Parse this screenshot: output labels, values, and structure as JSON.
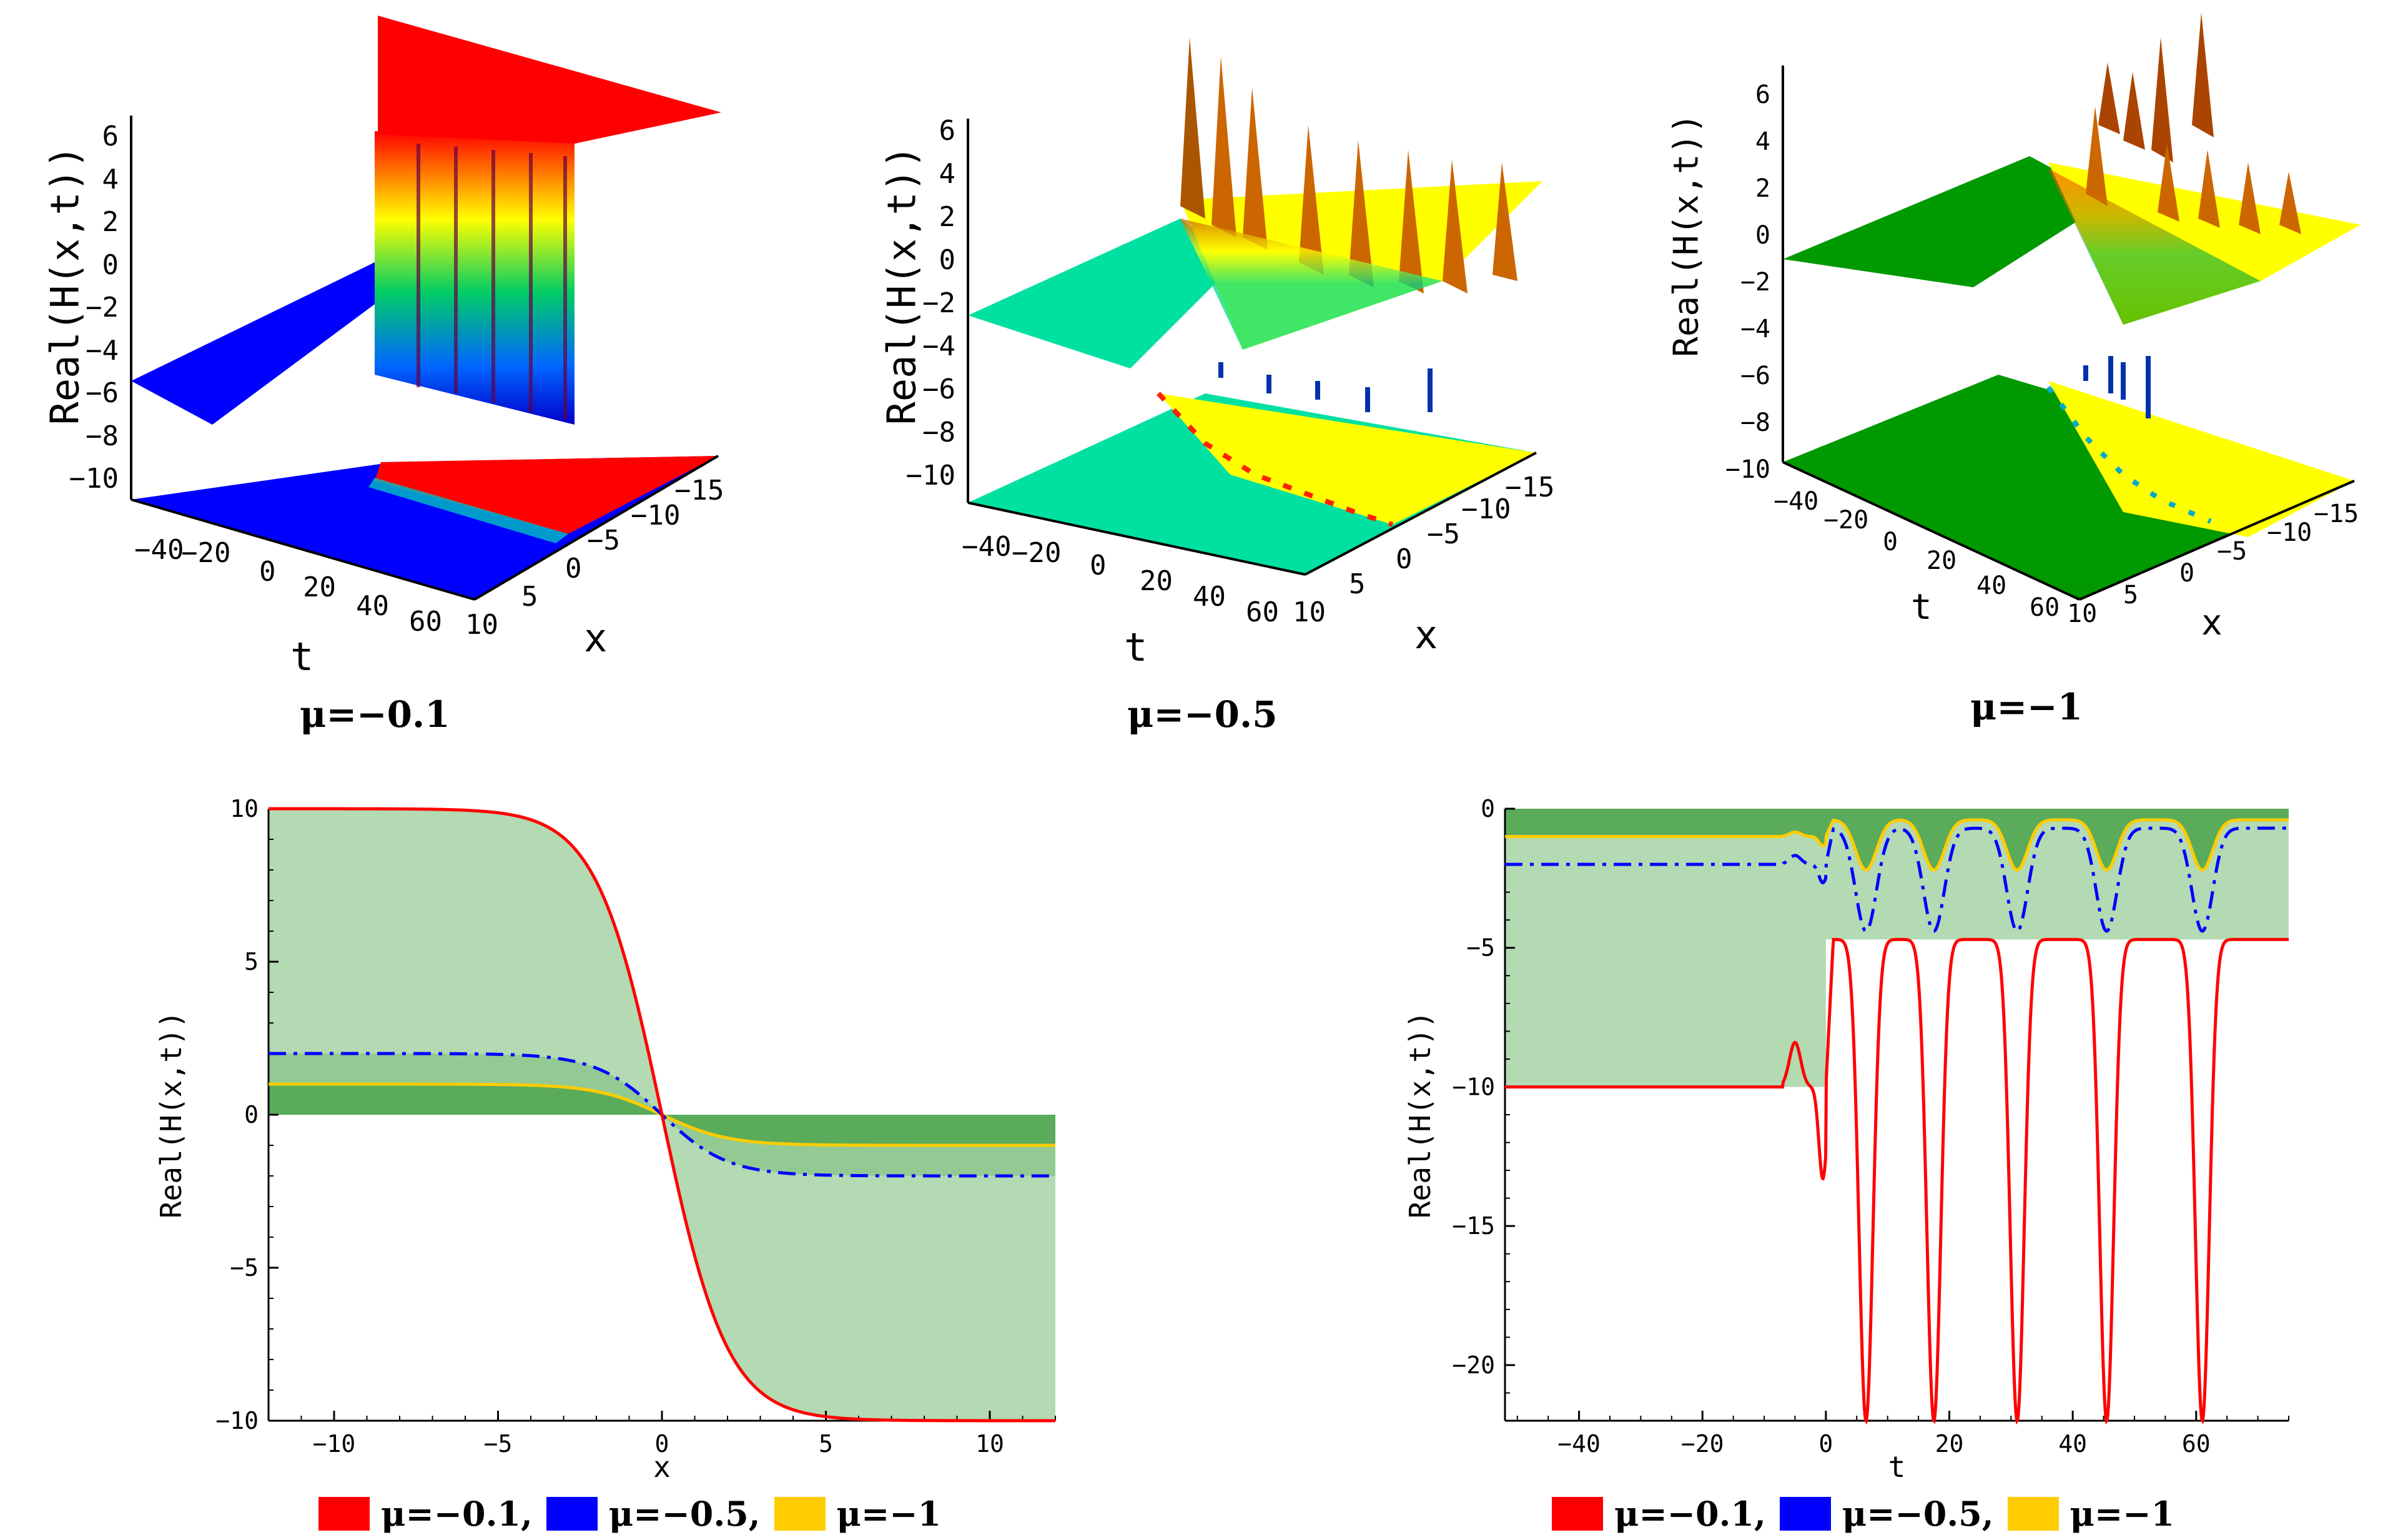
{
  "colors": {
    "red": "#ff0000",
    "blue": "#0000ff",
    "gold": "#ffcc00",
    "green_light": "#b3dab3",
    "green_dark": "#5aab5a",
    "surf_blue": "#0000ff",
    "surf_red": "#ff0000",
    "surf_teal": "#00e0a0",
    "surf_yellow": "#ffff00",
    "surf_green": "#009900"
  },
  "surfaces": [
    {
      "caption": "μ=−0.1",
      "zlabel": "Real(H(x,t))",
      "tlabel": "t",
      "xlabel": "x",
      "zticks": [
        "6",
        "4",
        "2",
        "0",
        "−2",
        "−4",
        "−6",
        "−8",
        "−10"
      ],
      "tticks": [
        "−40",
        "−20",
        "0",
        "20",
        "40",
        "60"
      ],
      "xticks": [
        "10",
        "5",
        "0",
        "−5",
        "−10",
        "−15"
      ]
    },
    {
      "caption": "μ=−0.5",
      "zlabel": "Real(H(x,t))",
      "tlabel": "t",
      "xlabel": "x",
      "zticks": [
        "6",
        "4",
        "2",
        "0",
        "−2",
        "−4",
        "−6",
        "−8",
        "−10"
      ],
      "tticks": [
        "−40",
        "−20",
        "0",
        "20",
        "40",
        "60"
      ],
      "xticks": [
        "10",
        "5",
        "0",
        "−5",
        "−10",
        "−15"
      ]
    },
    {
      "caption": "μ=−1",
      "zlabel": "Real(H(x,t))",
      "tlabel": "t",
      "xlabel": "x",
      "zticks": [
        "6",
        "4",
        "2",
        "0",
        "−2",
        "−4",
        "−6",
        "−8",
        "−10"
      ],
      "tticks": [
        "−40",
        "−20",
        "0",
        "20",
        "40",
        "60"
      ],
      "xticks": [
        "10",
        "5",
        "0",
        "−5",
        "−10",
        "−15"
      ]
    }
  ],
  "chart_data": [
    {
      "type": "line",
      "xlabel": "x",
      "ylabel": "Real(H(x,t))",
      "xlim": [
        -12,
        12
      ],
      "ylim": [
        -10,
        10
      ],
      "xticks": [
        -10,
        -5,
        0,
        5,
        10
      ],
      "yticks": [
        -10,
        -5,
        0,
        5,
        10
      ],
      "series": [
        {
          "name": "μ=−0.1",
          "amplitude": 10,
          "style": "solid",
          "color": "#ff0000"
        },
        {
          "name": "μ=−0.5",
          "amplitude": 2,
          "style": "dashdot",
          "color": "#0000ff"
        },
        {
          "name": "μ=−1",
          "amplitude": 1,
          "style": "solid",
          "color": "#ffcc00"
        }
      ],
      "legend": [
        "μ=−0.1,",
        "μ=−0.5,",
        "μ=−1"
      ]
    },
    {
      "type": "line",
      "xlabel": "t",
      "ylabel": "Real(H(x,t))",
      "xlim": [
        -52,
        75
      ],
      "ylim": [
        -22,
        0
      ],
      "xticks": [
        -40,
        -20,
        0,
        20,
        40,
        60
      ],
      "yticks": [
        0,
        -5,
        -10,
        -15,
        -20
      ],
      "series": [
        {
          "name": "μ=−0.1",
          "baseline": -10,
          "min": -22,
          "max": -4.7,
          "style": "solid",
          "color": "#ff0000"
        },
        {
          "name": "μ=−0.5",
          "baseline": -2,
          "min": -4.4,
          "max": -0.7,
          "style": "dashdot",
          "color": "#0000ff"
        },
        {
          "name": "μ=−1",
          "baseline": -1,
          "min": -2.2,
          "max": -0.4,
          "style": "solid",
          "color": "#ffcc00"
        }
      ],
      "dips_t": [
        6.5,
        17.5,
        31,
        45.5,
        61
      ],
      "legend": [
        "μ=−0.1,",
        "μ=−0.5,",
        "μ=−1"
      ]
    }
  ]
}
